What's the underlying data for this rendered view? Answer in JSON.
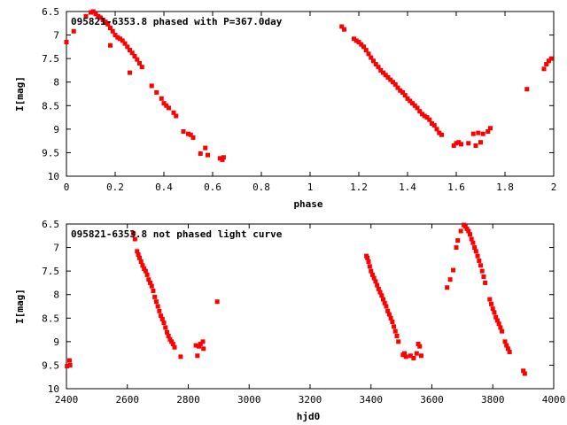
{
  "chart_data": [
    {
      "type": "scatter",
      "title": "095821-6353.8 phased with P=367.0day",
      "xlabel": "phase",
      "ylabel": "I[mag]",
      "xlim": [
        0,
        2
      ],
      "ylim": [
        10,
        6.5
      ],
      "y_reversed": true,
      "xticks": [
        "0",
        "0.2",
        "0.4",
        "0.6",
        "0.8",
        "1",
        "1.2",
        "1.4",
        "1.6",
        "1.8",
        "2"
      ],
      "yticks": [
        "6.5",
        "7",
        "7.5",
        "8",
        "8.5",
        "9",
        "9.5",
        "10"
      ],
      "marker_color": "#ff0000",
      "series": [
        {
          "points": [
            [
              0.0,
              7.15
            ],
            [
              0.03,
              6.92
            ],
            [
              0.08,
              6.6
            ],
            [
              0.1,
              6.52
            ],
            [
              0.11,
              6.5
            ],
            [
              0.12,
              6.55
            ],
            [
              0.13,
              6.6
            ],
            [
              0.14,
              6.63
            ],
            [
              0.15,
              6.68
            ],
            [
              0.16,
              6.72
            ],
            [
              0.17,
              6.77
            ],
            [
              0.18,
              6.85
            ],
            [
              0.19,
              6.92
            ],
            [
              0.2,
              7.0
            ],
            [
              0.21,
              7.05
            ],
            [
              0.22,
              7.08
            ],
            [
              0.23,
              7.12
            ],
            [
              0.24,
              7.18
            ],
            [
              0.25,
              7.25
            ],
            [
              0.26,
              7.32
            ],
            [
              0.27,
              7.38
            ],
            [
              0.28,
              7.45
            ],
            [
              0.29,
              7.52
            ],
            [
              0.3,
              7.6
            ],
            [
              0.31,
              7.68
            ],
            [
              0.18,
              7.22
            ],
            [
              0.26,
              7.8
            ],
            [
              0.35,
              8.08
            ],
            [
              0.37,
              8.22
            ],
            [
              0.39,
              8.35
            ],
            [
              0.4,
              8.45
            ],
            [
              0.41,
              8.5
            ],
            [
              0.42,
              8.55
            ],
            [
              0.44,
              8.65
            ],
            [
              0.45,
              8.72
            ],
            [
              0.48,
              9.05
            ],
            [
              0.5,
              9.1
            ],
            [
              0.51,
              9.12
            ],
            [
              0.52,
              9.18
            ],
            [
              0.55,
              9.52
            ],
            [
              0.57,
              9.4
            ],
            [
              0.58,
              9.55
            ],
            [
              0.63,
              9.62
            ],
            [
              0.64,
              9.65
            ],
            [
              0.645,
              9.6
            ],
            [
              1.13,
              6.82
            ],
            [
              1.14,
              6.88
            ],
            [
              1.18,
              7.08
            ],
            [
              1.19,
              7.12
            ],
            [
              1.2,
              7.15
            ],
            [
              1.21,
              7.2
            ],
            [
              1.22,
              7.25
            ],
            [
              1.23,
              7.32
            ],
            [
              1.24,
              7.4
            ],
            [
              1.25,
              7.48
            ],
            [
              1.26,
              7.55
            ],
            [
              1.27,
              7.62
            ],
            [
              1.28,
              7.68
            ],
            [
              1.29,
              7.75
            ],
            [
              1.3,
              7.8
            ],
            [
              1.31,
              7.85
            ],
            [
              1.32,
              7.9
            ],
            [
              1.33,
              7.95
            ],
            [
              1.34,
              8.0
            ],
            [
              1.35,
              8.05
            ],
            [
              1.36,
              8.12
            ],
            [
              1.37,
              8.18
            ],
            [
              1.38,
              8.22
            ],
            [
              1.39,
              8.28
            ],
            [
              1.4,
              8.35
            ],
            [
              1.41,
              8.4
            ],
            [
              1.42,
              8.45
            ],
            [
              1.43,
              8.5
            ],
            [
              1.44,
              8.55
            ],
            [
              1.45,
              8.62
            ],
            [
              1.46,
              8.68
            ],
            [
              1.47,
              8.72
            ],
            [
              1.48,
              8.75
            ],
            [
              1.49,
              8.8
            ],
            [
              1.5,
              8.88
            ],
            [
              1.51,
              8.92
            ],
            [
              1.52,
              9.0
            ],
            [
              1.53,
              9.08
            ],
            [
              1.54,
              9.12
            ],
            [
              1.59,
              9.35
            ],
            [
              1.6,
              9.3
            ],
            [
              1.61,
              9.28
            ],
            [
              1.62,
              9.32
            ],
            [
              1.65,
              9.3
            ],
            [
              1.67,
              9.1
            ],
            [
              1.68,
              9.35
            ],
            [
              1.69,
              9.08
            ],
            [
              1.7,
              9.28
            ],
            [
              1.71,
              9.1
            ],
            [
              1.73,
              9.05
            ],
            [
              1.74,
              8.98
            ],
            [
              1.89,
              8.15
            ],
            [
              1.96,
              7.72
            ],
            [
              1.97,
              7.62
            ],
            [
              1.98,
              7.55
            ],
            [
              1.99,
              7.5
            ]
          ]
        }
      ]
    },
    {
      "type": "scatter",
      "title": "095821-6353.8 not phased light curve",
      "xlabel": "hjd0",
      "ylabel": "I[mag]",
      "xlim": [
        2400,
        4000
      ],
      "ylim": [
        10,
        6.5
      ],
      "y_reversed": true,
      "xticks": [
        "2400",
        "2600",
        "2800",
        "3000",
        "3200",
        "3400",
        "3600",
        "3800",
        "4000"
      ],
      "yticks": [
        "6.5",
        "7",
        "7.5",
        "8",
        "8.5",
        "9",
        "9.5",
        "10"
      ],
      "marker_color": "#ff0000",
      "series": [
        {
          "points": [
            [
              2402,
              9.52
            ],
            [
              2410,
              9.4
            ],
            [
              2412,
              9.5
            ],
            [
              2620,
              6.7
            ],
            [
              2625,
              6.82
            ],
            [
              2632,
              7.08
            ],
            [
              2636,
              7.15
            ],
            [
              2640,
              7.22
            ],
            [
              2645,
              7.3
            ],
            [
              2650,
              7.38
            ],
            [
              2655,
              7.45
            ],
            [
              2660,
              7.5
            ],
            [
              2665,
              7.58
            ],
            [
              2670,
              7.68
            ],
            [
              2675,
              7.75
            ],
            [
              2680,
              7.82
            ],
            [
              2685,
              7.92
            ],
            [
              2690,
              8.05
            ],
            [
              2695,
              8.15
            ],
            [
              2700,
              8.25
            ],
            [
              2705,
              8.35
            ],
            [
              2710,
              8.45
            ],
            [
              2715,
              8.52
            ],
            [
              2720,
              8.6
            ],
            [
              2725,
              8.7
            ],
            [
              2730,
              8.8
            ],
            [
              2735,
              8.88
            ],
            [
              2740,
              8.95
            ],
            [
              2745,
              9.0
            ],
            [
              2750,
              9.05
            ],
            [
              2755,
              9.12
            ],
            [
              2775,
              9.32
            ],
            [
              2825,
              9.08
            ],
            [
              2830,
              9.3
            ],
            [
              2835,
              9.1
            ],
            [
              2840,
              9.05
            ],
            [
              2848,
              9.0
            ],
            [
              2850,
              9.15
            ],
            [
              2895,
              8.15
            ],
            [
              3385,
              7.18
            ],
            [
              3388,
              7.22
            ],
            [
              3392,
              7.3
            ],
            [
              3396,
              7.4
            ],
            [
              3400,
              7.5
            ],
            [
              3405,
              7.58
            ],
            [
              3410,
              7.65
            ],
            [
              3415,
              7.72
            ],
            [
              3420,
              7.8
            ],
            [
              3425,
              7.88
            ],
            [
              3430,
              7.95
            ],
            [
              3435,
              8.02
            ],
            [
              3440,
              8.1
            ],
            [
              3445,
              8.18
            ],
            [
              3450,
              8.25
            ],
            [
              3455,
              8.35
            ],
            [
              3460,
              8.42
            ],
            [
              3465,
              8.5
            ],
            [
              3470,
              8.58
            ],
            [
              3475,
              8.68
            ],
            [
              3480,
              8.78
            ],
            [
              3485,
              8.88
            ],
            [
              3490,
              9.0
            ],
            [
              3505,
              9.28
            ],
            [
              3510,
              9.25
            ],
            [
              3515,
              9.32
            ],
            [
              3530,
              9.3
            ],
            [
              3540,
              9.35
            ],
            [
              3550,
              9.25
            ],
            [
              3555,
              9.05
            ],
            [
              3560,
              9.1
            ],
            [
              3565,
              9.3
            ],
            [
              3650,
              7.85
            ],
            [
              3660,
              7.68
            ],
            [
              3670,
              7.48
            ],
            [
              3680,
              7.0
            ],
            [
              3685,
              6.85
            ],
            [
              3695,
              6.65
            ],
            [
              3705,
              6.52
            ],
            [
              3710,
              6.55
            ],
            [
              3715,
              6.6
            ],
            [
              3720,
              6.65
            ],
            [
              3725,
              6.72
            ],
            [
              3730,
              6.82
            ],
            [
              3735,
              6.9
            ],
            [
              3740,
              7.0
            ],
            [
              3745,
              7.08
            ],
            [
              3750,
              7.18
            ],
            [
              3755,
              7.28
            ],
            [
              3760,
              7.38
            ],
            [
              3765,
              7.5
            ],
            [
              3770,
              7.62
            ],
            [
              3775,
              7.75
            ],
            [
              3790,
              8.1
            ],
            [
              3795,
              8.2
            ],
            [
              3800,
              8.3
            ],
            [
              3805,
              8.38
            ],
            [
              3810,
              8.48
            ],
            [
              3815,
              8.55
            ],
            [
              3820,
              8.62
            ],
            [
              3825,
              8.7
            ],
            [
              3830,
              8.78
            ],
            [
              3840,
              9.0
            ],
            [
              3845,
              9.08
            ],
            [
              3850,
              9.15
            ],
            [
              3855,
              9.22
            ],
            [
              3900,
              9.62
            ],
            [
              3905,
              9.68
            ]
          ]
        }
      ]
    }
  ]
}
